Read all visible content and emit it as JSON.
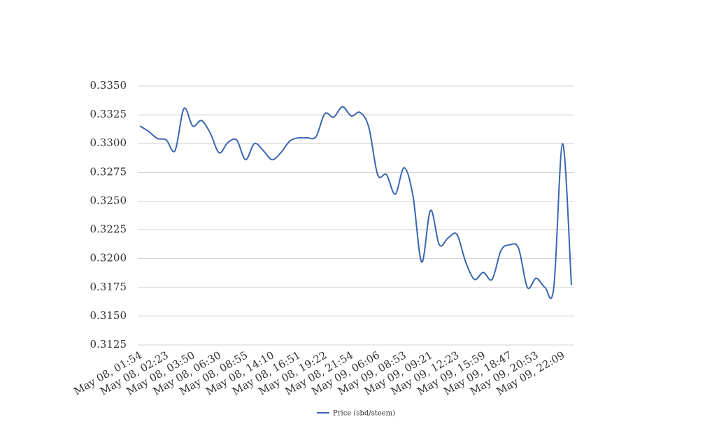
{
  "chart_data": {
    "type": "line",
    "categories": [
      "May 08, 01:54",
      null,
      null,
      "May 08, 02:23",
      null,
      null,
      "May 08, 03:50",
      null,
      null,
      "May 08, 06:30",
      null,
      null,
      "May 08, 08:55",
      null,
      null,
      "May 08, 14:10",
      null,
      null,
      "May 08, 16:51",
      null,
      null,
      "May 08, 19:22",
      null,
      null,
      "May 08, 21:54",
      null,
      null,
      "May 09, 06:06",
      null,
      null,
      "May 09, 08:53",
      null,
      null,
      "May 09, 09:21",
      null,
      null,
      "May 09, 12:23",
      null,
      null,
      "May 09, 15:59",
      null,
      null,
      "May 09, 18:47",
      null,
      null,
      "May 09, 20:53",
      null,
      null,
      "May 09, 22:09",
      null
    ],
    "series": [
      {
        "name": "Price (sbd/steem)",
        "color": "#3a66b0",
        "values": [
          0.33153,
          0.33105,
          0.33044,
          0.33032,
          0.3294,
          0.33305,
          0.33153,
          0.332,
          0.3309,
          0.3292,
          0.3301,
          0.3303,
          0.3286,
          0.33,
          0.3294,
          0.3286,
          0.3292,
          0.3302,
          0.3305,
          0.3305,
          0.3306,
          0.3326,
          0.3323,
          0.3332,
          0.3324,
          0.3327,
          0.3314,
          0.3273,
          0.3273,
          0.3256,
          0.3279,
          0.3255,
          0.3197,
          0.3242,
          0.3212,
          0.3218,
          0.3221,
          0.3197,
          0.3182,
          0.3188,
          0.3182,
          0.3207,
          0.3212,
          0.3209,
          0.3175,
          0.3183,
          0.3175,
          0.3175,
          0.33,
          0.3177
        ]
      }
    ],
    "ylim": [
      0.3125,
      0.335
    ],
    "yticks": [
      {
        "value": 0.3125,
        "label": "0.3125"
      },
      {
        "value": 0.315,
        "label": "0.3150"
      },
      {
        "value": 0.3175,
        "label": "0.3175"
      },
      {
        "value": 0.32,
        "label": "0.3200"
      },
      {
        "value": 0.3225,
        "label": "0.3225"
      },
      {
        "value": 0.325,
        "label": "0.3250"
      },
      {
        "value": 0.3275,
        "label": "0.3275"
      },
      {
        "value": 0.33,
        "label": "0.3300"
      },
      {
        "value": 0.3325,
        "label": "0.3325"
      },
      {
        "value": 0.335,
        "label": "0.3350"
      }
    ],
    "grid": true,
    "legend": "bottom"
  }
}
